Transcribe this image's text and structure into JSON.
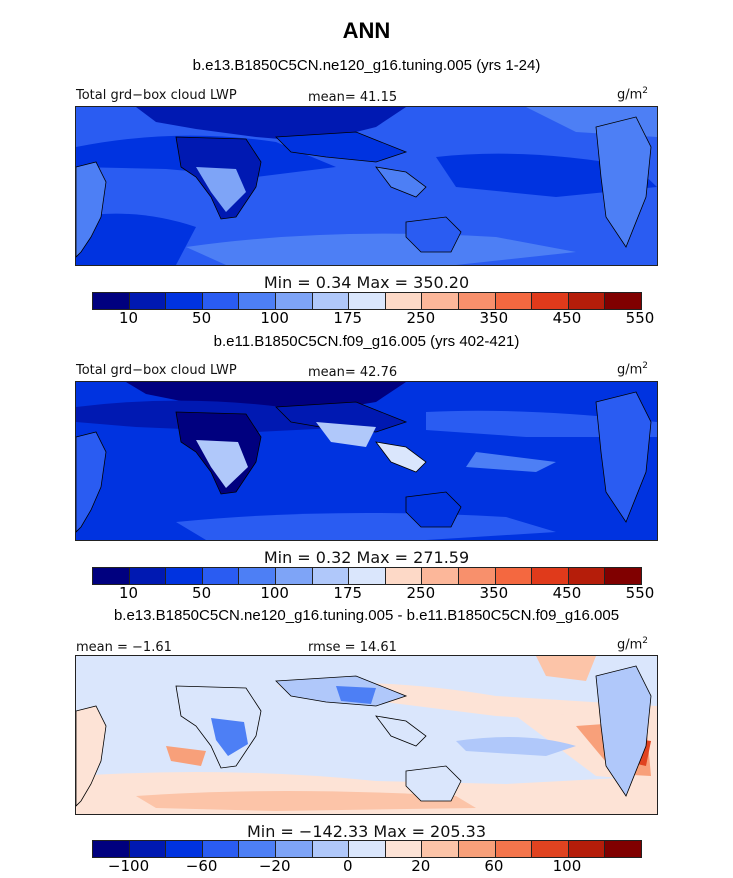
{
  "title": "ANN",
  "panels": [
    {
      "case_title": "b.e13.B1850C5CN.ne120_g16.tuning.005 (yrs 1-24)",
      "left_label": "Total grd−box cloud LWP",
      "stat_label": "mean=  41.15",
      "units_base": "g/m",
      "units_exp": "2",
      "minmax": "Min =    0.34  Max =  350.20",
      "cb_labels": [
        "10",
        "50",
        "100",
        "175",
        "250",
        "350",
        "450",
        "550"
      ],
      "colors": [
        "#00007f",
        "#0019b2",
        "#0033e0",
        "#2a5cf2",
        "#4d7ff5",
        "#7ea4f7",
        "#b0c8fa",
        "#dae6fc",
        "#fdd9c7",
        "#fcb79a",
        "#f8906c",
        "#f46840",
        "#e03a1b",
        "#b51d0a",
        "#800000"
      ]
    },
    {
      "case_title": "b.e11.B1850C5CN.f09_g16.005 (yrs 402-421)",
      "left_label": "Total grd−box cloud LWP",
      "stat_label": "mean=  42.76",
      "units_base": "g/m",
      "units_exp": "2",
      "minmax": "Min =    0.32  Max =  271.59",
      "cb_labels": [
        "10",
        "50",
        "100",
        "175",
        "250",
        "350",
        "450",
        "550"
      ],
      "colors": [
        "#00007f",
        "#0019b2",
        "#0033e0",
        "#2a5cf2",
        "#4d7ff5",
        "#7ea4f7",
        "#b0c8fa",
        "#dae6fc",
        "#fdd9c7",
        "#fcb79a",
        "#f8906c",
        "#f46840",
        "#e03a1b",
        "#b51d0a",
        "#800000"
      ]
    },
    {
      "case_title": "b.e13.B1850C5CN.ne120_g16.tuning.005 - b.e11.B1850C5CN.f09_g16.005",
      "left_label": "mean =  −1.61",
      "stat_label": "rmse =  14.61",
      "units_base": "g/m",
      "units_exp": "2",
      "minmax": "Min = −142.33  Max =  205.33",
      "cb_labels": [
        "−100",
        "−60",
        "−20",
        "0",
        "20",
        "60",
        "100"
      ],
      "colors": [
        "#00007f",
        "#0019b2",
        "#0033e0",
        "#2a5cf2",
        "#4d7ff5",
        "#7ea4f7",
        "#b0c8fa",
        "#dae6fc",
        "#fde3d6",
        "#fcc4a8",
        "#f8a07a",
        "#f4754c",
        "#e04320",
        "#b51d0a",
        "#800000"
      ]
    }
  ]
}
